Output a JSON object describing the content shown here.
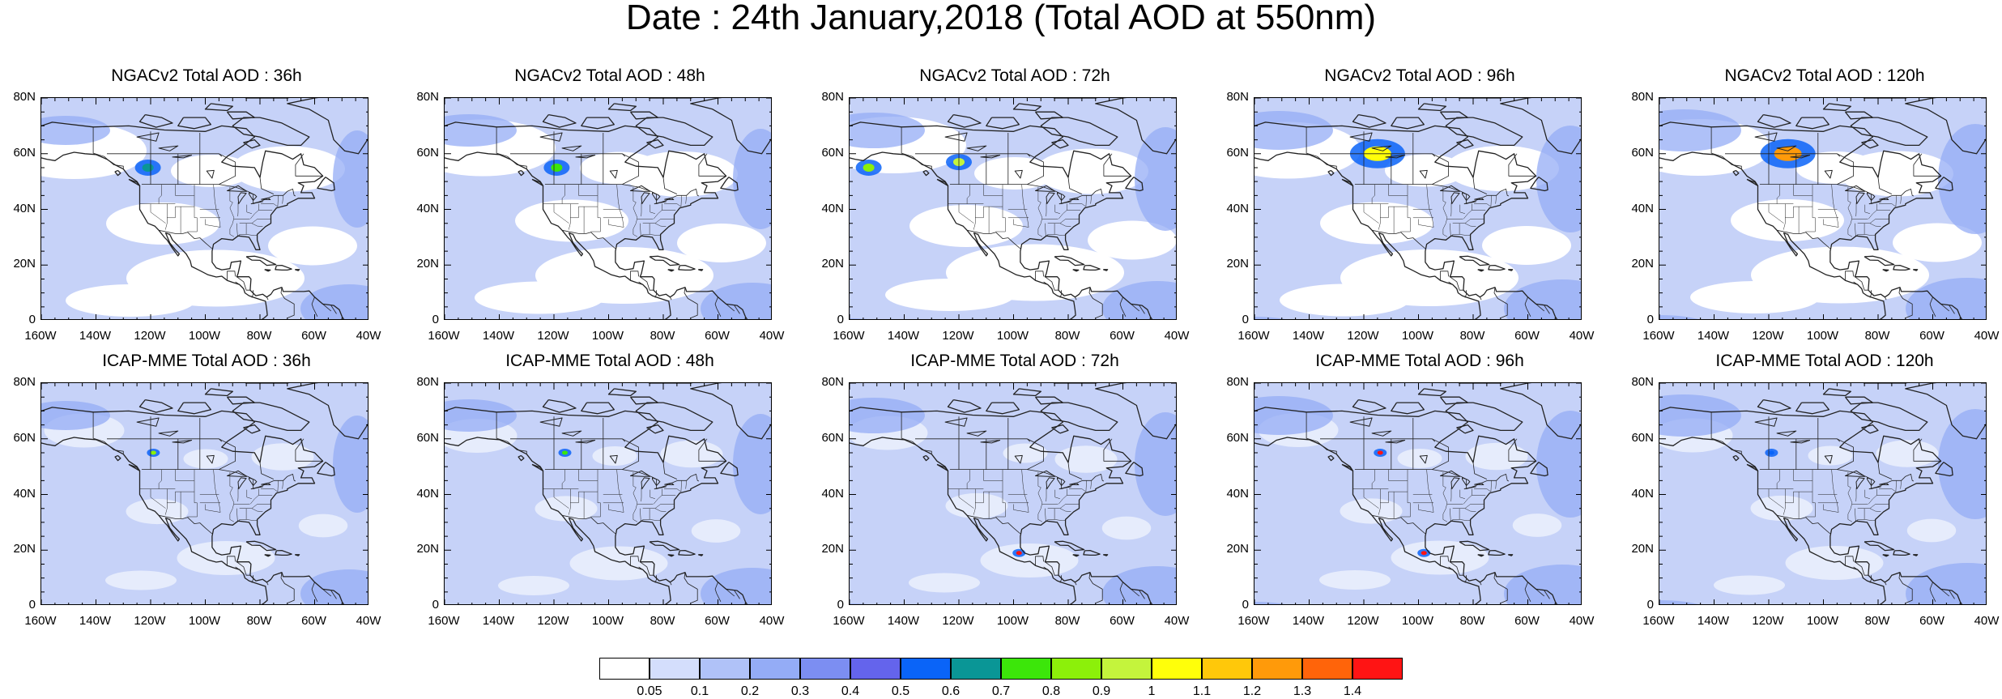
{
  "title": "Date : 24th January,2018 (Total AOD at 550nm)",
  "y_ticks": [
    "80N",
    "60N",
    "40N",
    "20N",
    "0"
  ],
  "x_ticks": [
    "160W",
    "140W",
    "120W",
    "100W",
    "80W",
    "60W",
    "40W"
  ],
  "rows": [
    {
      "model": "NGACv2",
      "panels": [
        {
          "title": "NGACv2 Total AOD : 36h",
          "hotspots": [
            {
              "lon": -121,
              "lat": 55,
              "level": "0.6-0.7"
            }
          ]
        },
        {
          "title": "NGACv2 Total AOD : 48h",
          "hotspots": [
            {
              "lon": -119,
              "lat": 55,
              "level": "0.7-0.8"
            }
          ]
        },
        {
          "title": "NGACv2 Total AOD : 72h",
          "hotspots": [
            {
              "lon": -153,
              "lat": 55,
              "level": "0.8-0.9"
            },
            {
              "lon": -120,
              "lat": 57,
              "level": "0.9-1"
            }
          ]
        },
        {
          "title": "NGACv2 Total AOD : 96h",
          "hotspots": [
            {
              "lon": -115,
              "lat": 60,
              "level": "1-1.1"
            }
          ]
        },
        {
          "title": "NGACv2 Total AOD : 120h",
          "hotspots": [
            {
              "lon": -113,
              "lat": 60,
              "level": "1.2-1.3"
            }
          ]
        }
      ]
    },
    {
      "model": "ICAP-MME",
      "panels": [
        {
          "title": "ICAP-MME Total AOD : 36h",
          "hotspots": [
            {
              "lon": -119,
              "lat": 55,
              "level": "0.8-0.9"
            }
          ]
        },
        {
          "title": "ICAP-MME Total AOD : 48h",
          "hotspots": [
            {
              "lon": -116,
              "lat": 55,
              "level": "0.7-0.8"
            }
          ]
        },
        {
          "title": "ICAP-MME Total AOD : 72h",
          "hotspots": [
            {
              "lon": -98,
              "lat": 19,
              "level": ">1.4"
            }
          ]
        },
        {
          "title": "ICAP-MME Total AOD : 96h",
          "hotspots": [
            {
              "lon": -114,
              "lat": 55,
              "level": ">1.4"
            },
            {
              "lon": -98,
              "lat": 19,
              "level": ">1.4"
            }
          ]
        },
        {
          "title": "ICAP-MME Total AOD : 120h",
          "hotspots": [
            {
              "lon": -119,
              "lat": 55,
              "level": "0.5-0.6"
            }
          ]
        }
      ]
    }
  ],
  "colorbar": {
    "labels": [
      "0.05",
      "0.1",
      "0.2",
      "0.3",
      "0.4",
      "0.5",
      "0.6",
      "0.7",
      "0.8",
      "0.9",
      "1",
      "1.1",
      "1.2",
      "1.3",
      "1.4"
    ],
    "colors": [
      "#ffffff",
      "#d4defc",
      "#b0c2f8",
      "#94acf6",
      "#7c8ef2",
      "#6464ec",
      "#0a64f8",
      "#0a9696",
      "#3ce60a",
      "#8cf00a",
      "#c4f43c",
      "#ffff0a",
      "#ffc80a",
      "#ff9a0a",
      "#ff640a",
      "#ff1414"
    ]
  },
  "colors": {
    "base_aod": "#c6d2f8",
    "light_aod": "#e6ecfc",
    "coast": "#222222"
  }
}
